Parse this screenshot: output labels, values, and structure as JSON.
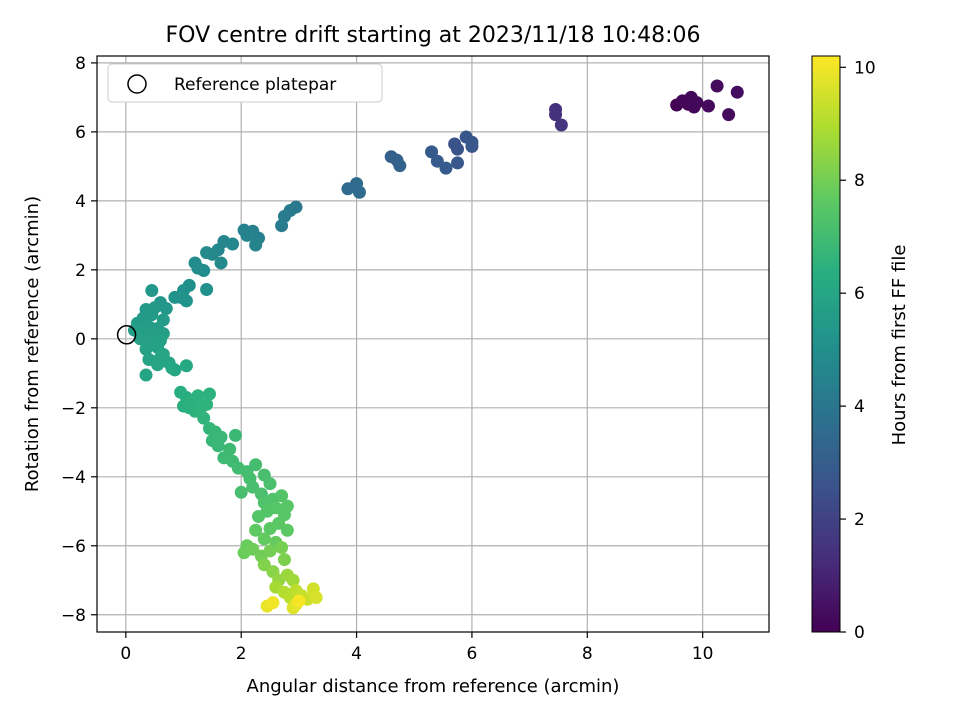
{
  "chart_data": {
    "type": "scatter",
    "title": "FOV centre drift starting at 2023/11/18 10:48:06",
    "xlabel": "Angular distance from reference (arcmin)",
    "ylabel": "Rotation from reference (arcmin)",
    "xlim": [
      -0.5,
      11.15
    ],
    "ylim": [
      -8.5,
      8.2
    ],
    "xticks": [
      0,
      2,
      4,
      6,
      8,
      10
    ],
    "yticks": [
      -8,
      -6,
      -4,
      -2,
      0,
      2,
      4,
      6,
      8
    ],
    "grid": true,
    "legend": {
      "placement": "upper-left",
      "entries": [
        "Reference platepar"
      ]
    },
    "reference_point": {
      "x": 0,
      "y": 0,
      "marker": "open-circle"
    },
    "colorbar": {
      "label": "Hours from first FF file",
      "colormap": "viridis",
      "range": [
        0,
        10.2
      ],
      "ticks": [
        0,
        2,
        4,
        6,
        8,
        10
      ]
    },
    "points": [
      {
        "x": 9.55,
        "y": 6.78,
        "c": 0.0
      },
      {
        "x": 9.65,
        "y": 6.9,
        "c": 0.1
      },
      {
        "x": 9.75,
        "y": 6.8,
        "c": 0.1
      },
      {
        "x": 9.8,
        "y": 7.0,
        "c": 0.15
      },
      {
        "x": 9.85,
        "y": 6.72,
        "c": 0.2
      },
      {
        "x": 9.9,
        "y": 6.85,
        "c": 0.2
      },
      {
        "x": 10.1,
        "y": 6.75,
        "c": 0.25
      },
      {
        "x": 10.25,
        "y": 7.33,
        "c": 0.3
      },
      {
        "x": 10.45,
        "y": 6.5,
        "c": 0.3
      },
      {
        "x": 10.6,
        "y": 7.15,
        "c": 0.35
      },
      {
        "x": 7.45,
        "y": 6.65,
        "c": 1.4
      },
      {
        "x": 7.45,
        "y": 6.5,
        "c": 1.45
      },
      {
        "x": 7.55,
        "y": 6.2,
        "c": 1.5
      },
      {
        "x": 5.7,
        "y": 5.65,
        "c": 2.6
      },
      {
        "x": 5.75,
        "y": 5.5,
        "c": 2.6
      },
      {
        "x": 5.9,
        "y": 5.85,
        "c": 2.7
      },
      {
        "x": 6.0,
        "y": 5.7,
        "c": 2.7
      },
      {
        "x": 6.0,
        "y": 5.58,
        "c": 2.75
      },
      {
        "x": 5.75,
        "y": 5.1,
        "c": 2.8
      },
      {
        "x": 5.3,
        "y": 5.42,
        "c": 2.85
      },
      {
        "x": 5.4,
        "y": 5.15,
        "c": 2.9
      },
      {
        "x": 5.55,
        "y": 4.95,
        "c": 2.9
      },
      {
        "x": 4.6,
        "y": 5.28,
        "c": 3.1
      },
      {
        "x": 4.7,
        "y": 5.18,
        "c": 3.15
      },
      {
        "x": 4.75,
        "y": 5.02,
        "c": 3.2
      },
      {
        "x": 3.85,
        "y": 4.35,
        "c": 3.5
      },
      {
        "x": 4.0,
        "y": 4.5,
        "c": 3.55
      },
      {
        "x": 4.05,
        "y": 4.25,
        "c": 3.6
      },
      {
        "x": 2.95,
        "y": 3.82,
        "c": 4.1
      },
      {
        "x": 2.85,
        "y": 3.72,
        "c": 4.15
      },
      {
        "x": 2.75,
        "y": 3.55,
        "c": 4.2
      },
      {
        "x": 2.7,
        "y": 3.28,
        "c": 4.25
      },
      {
        "x": 2.3,
        "y": 2.92,
        "c": 4.4
      },
      {
        "x": 2.2,
        "y": 3.12,
        "c": 4.45
      },
      {
        "x": 2.05,
        "y": 3.15,
        "c": 4.5
      },
      {
        "x": 2.25,
        "y": 2.72,
        "c": 4.55
      },
      {
        "x": 2.1,
        "y": 3.0,
        "c": 4.5
      },
      {
        "x": 1.7,
        "y": 2.82,
        "c": 4.65
      },
      {
        "x": 1.6,
        "y": 2.58,
        "c": 4.7
      },
      {
        "x": 1.5,
        "y": 2.45,
        "c": 4.75
      },
      {
        "x": 1.65,
        "y": 2.2,
        "c": 4.8
      },
      {
        "x": 1.85,
        "y": 2.75,
        "c": 4.7
      },
      {
        "x": 1.4,
        "y": 2.5,
        "c": 4.8
      },
      {
        "x": 1.2,
        "y": 2.2,
        "c": 4.9
      },
      {
        "x": 1.35,
        "y": 1.98,
        "c": 4.95
      },
      {
        "x": 1.25,
        "y": 2.05,
        "c": 4.95
      },
      {
        "x": 1.1,
        "y": 1.55,
        "c": 5.05
      },
      {
        "x": 1.0,
        "y": 1.4,
        "c": 5.1
      },
      {
        "x": 0.95,
        "y": 1.2,
        "c": 5.15
      },
      {
        "x": 1.05,
        "y": 1.1,
        "c": 5.2
      },
      {
        "x": 1.4,
        "y": 1.43,
        "c": 5.1
      },
      {
        "x": 0.85,
        "y": 1.2,
        "c": 5.2
      },
      {
        "x": 0.6,
        "y": 1.05,
        "c": 5.3
      },
      {
        "x": 0.7,
        "y": 0.88,
        "c": 5.35
      },
      {
        "x": 0.5,
        "y": 0.9,
        "c": 5.4
      },
      {
        "x": 0.45,
        "y": 1.4,
        "c": 5.35
      },
      {
        "x": 0.35,
        "y": 0.85,
        "c": 5.45
      },
      {
        "x": 0.3,
        "y": 0.6,
        "c": 5.5
      },
      {
        "x": 0.45,
        "y": 0.7,
        "c": 5.5
      },
      {
        "x": 0.65,
        "y": 0.55,
        "c": 5.55
      },
      {
        "x": 0.2,
        "y": 0.45,
        "c": 5.55
      },
      {
        "x": 0.4,
        "y": 0.35,
        "c": 5.6
      },
      {
        "x": 0.55,
        "y": 0.3,
        "c": 5.6
      },
      {
        "x": 0.15,
        "y": 0.25,
        "c": 5.65
      },
      {
        "x": 0.3,
        "y": 0.15,
        "c": 5.65
      },
      {
        "x": 0.5,
        "y": 0.1,
        "c": 5.7
      },
      {
        "x": 0.65,
        "y": 0.15,
        "c": 5.7
      },
      {
        "x": 0.25,
        "y": 0.0,
        "c": 5.75
      },
      {
        "x": 0.4,
        "y": -0.1,
        "c": 5.75
      },
      {
        "x": 0.6,
        "y": -0.05,
        "c": 5.8
      },
      {
        "x": 0.35,
        "y": -0.3,
        "c": 5.85
      },
      {
        "x": 0.55,
        "y": -0.25,
        "c": 5.85
      },
      {
        "x": 0.4,
        "y": -0.6,
        "c": 5.9
      },
      {
        "x": 0.6,
        "y": -0.55,
        "c": 5.9
      },
      {
        "x": 0.55,
        "y": -0.75,
        "c": 5.95
      },
      {
        "x": 0.65,
        "y": -0.45,
        "c": 5.95
      },
      {
        "x": 0.35,
        "y": -1.05,
        "c": 6.0
      },
      {
        "x": 0.75,
        "y": -0.7,
        "c": 6.0
      },
      {
        "x": 0.8,
        "y": -0.85,
        "c": 6.05
      },
      {
        "x": 0.85,
        "y": -0.9,
        "c": 6.05
      },
      {
        "x": 1.05,
        "y": -0.78,
        "c": 6.1
      },
      {
        "x": 0.95,
        "y": -1.55,
        "c": 6.3
      },
      {
        "x": 1.05,
        "y": -1.7,
        "c": 6.35
      },
      {
        "x": 1.0,
        "y": -1.95,
        "c": 6.4
      },
      {
        "x": 1.15,
        "y": -1.8,
        "c": 6.45
      },
      {
        "x": 1.2,
        "y": -2.1,
        "c": 6.5
      },
      {
        "x": 1.1,
        "y": -2.0,
        "c": 6.45
      },
      {
        "x": 1.25,
        "y": -1.65,
        "c": 6.5
      },
      {
        "x": 1.3,
        "y": -2.0,
        "c": 6.55
      },
      {
        "x": 1.35,
        "y": -2.3,
        "c": 6.6
      },
      {
        "x": 1.4,
        "y": -1.9,
        "c": 6.55
      },
      {
        "x": 1.45,
        "y": -1.6,
        "c": 6.5
      },
      {
        "x": 1.45,
        "y": -2.6,
        "c": 6.7
      },
      {
        "x": 1.5,
        "y": -2.95,
        "c": 6.75
      },
      {
        "x": 1.55,
        "y": -2.7,
        "c": 6.75
      },
      {
        "x": 1.6,
        "y": -3.1,
        "c": 6.8
      },
      {
        "x": 1.65,
        "y": -2.85,
        "c": 6.8
      },
      {
        "x": 1.7,
        "y": -3.45,
        "c": 6.9
      },
      {
        "x": 1.8,
        "y": -3.2,
        "c": 6.9
      },
      {
        "x": 1.85,
        "y": -3.55,
        "c": 6.95
      },
      {
        "x": 1.95,
        "y": -3.75,
        "c": 7.0
      },
      {
        "x": 1.9,
        "y": -2.8,
        "c": 6.85
      },
      {
        "x": 2.1,
        "y": -3.85,
        "c": 7.05
      },
      {
        "x": 2.25,
        "y": -3.65,
        "c": 7.05
      },
      {
        "x": 2.15,
        "y": -4.05,
        "c": 7.1
      },
      {
        "x": 2.0,
        "y": -4.45,
        "c": 7.15
      },
      {
        "x": 2.2,
        "y": -4.3,
        "c": 7.15
      },
      {
        "x": 2.35,
        "y": -4.5,
        "c": 7.2
      },
      {
        "x": 2.4,
        "y": -3.95,
        "c": 7.15
      },
      {
        "x": 2.5,
        "y": -4.2,
        "c": 7.2
      },
      {
        "x": 2.4,
        "y": -4.75,
        "c": 7.3
      },
      {
        "x": 2.55,
        "y": -4.65,
        "c": 7.3
      },
      {
        "x": 2.3,
        "y": -5.15,
        "c": 7.4
      },
      {
        "x": 2.45,
        "y": -5.0,
        "c": 7.4
      },
      {
        "x": 2.6,
        "y": -4.9,
        "c": 7.45
      },
      {
        "x": 2.7,
        "y": -4.55,
        "c": 7.4
      },
      {
        "x": 2.75,
        "y": -5.1,
        "c": 7.5
      },
      {
        "x": 2.8,
        "y": -4.85,
        "c": 7.5
      },
      {
        "x": 2.65,
        "y": -5.35,
        "c": 7.55
      },
      {
        "x": 2.8,
        "y": -5.55,
        "c": 7.6
      },
      {
        "x": 2.5,
        "y": -5.5,
        "c": 7.6
      },
      {
        "x": 2.25,
        "y": -5.55,
        "c": 7.65
      },
      {
        "x": 2.4,
        "y": -5.8,
        "c": 7.7
      },
      {
        "x": 2.6,
        "y": -5.9,
        "c": 7.75
      },
      {
        "x": 2.1,
        "y": -6.0,
        "c": 7.8
      },
      {
        "x": 2.05,
        "y": -6.2,
        "c": 7.85
      },
      {
        "x": 2.2,
        "y": -6.1,
        "c": 7.9
      },
      {
        "x": 2.35,
        "y": -6.3,
        "c": 7.95
      },
      {
        "x": 2.5,
        "y": -6.15,
        "c": 8.0
      },
      {
        "x": 2.7,
        "y": -6.05,
        "c": 8.05
      },
      {
        "x": 2.75,
        "y": -6.4,
        "c": 8.15
      },
      {
        "x": 2.4,
        "y": -6.55,
        "c": 8.2
      },
      {
        "x": 2.55,
        "y": -6.75,
        "c": 8.35
      },
      {
        "x": 2.65,
        "y": -7.0,
        "c": 8.5
      },
      {
        "x": 2.8,
        "y": -6.85,
        "c": 8.6
      },
      {
        "x": 2.9,
        "y": -7.0,
        "c": 8.7
      },
      {
        "x": 2.6,
        "y": -7.2,
        "c": 8.8
      },
      {
        "x": 2.75,
        "y": -7.35,
        "c": 9.0
      },
      {
        "x": 2.85,
        "y": -7.5,
        "c": 9.1
      },
      {
        "x": 2.95,
        "y": -7.3,
        "c": 9.2
      },
      {
        "x": 3.05,
        "y": -7.45,
        "c": 9.3
      },
      {
        "x": 3.15,
        "y": -7.55,
        "c": 9.4
      },
      {
        "x": 3.25,
        "y": -7.25,
        "c": 9.5
      },
      {
        "x": 3.3,
        "y": -7.5,
        "c": 9.6
      },
      {
        "x": 2.9,
        "y": -7.8,
        "c": 9.7
      },
      {
        "x": 2.95,
        "y": -7.7,
        "c": 9.8
      },
      {
        "x": 2.45,
        "y": -7.75,
        "c": 9.9
      },
      {
        "x": 2.55,
        "y": -7.65,
        "c": 10.0
      },
      {
        "x": 3.0,
        "y": -7.6,
        "c": 10.1
      }
    ]
  }
}
